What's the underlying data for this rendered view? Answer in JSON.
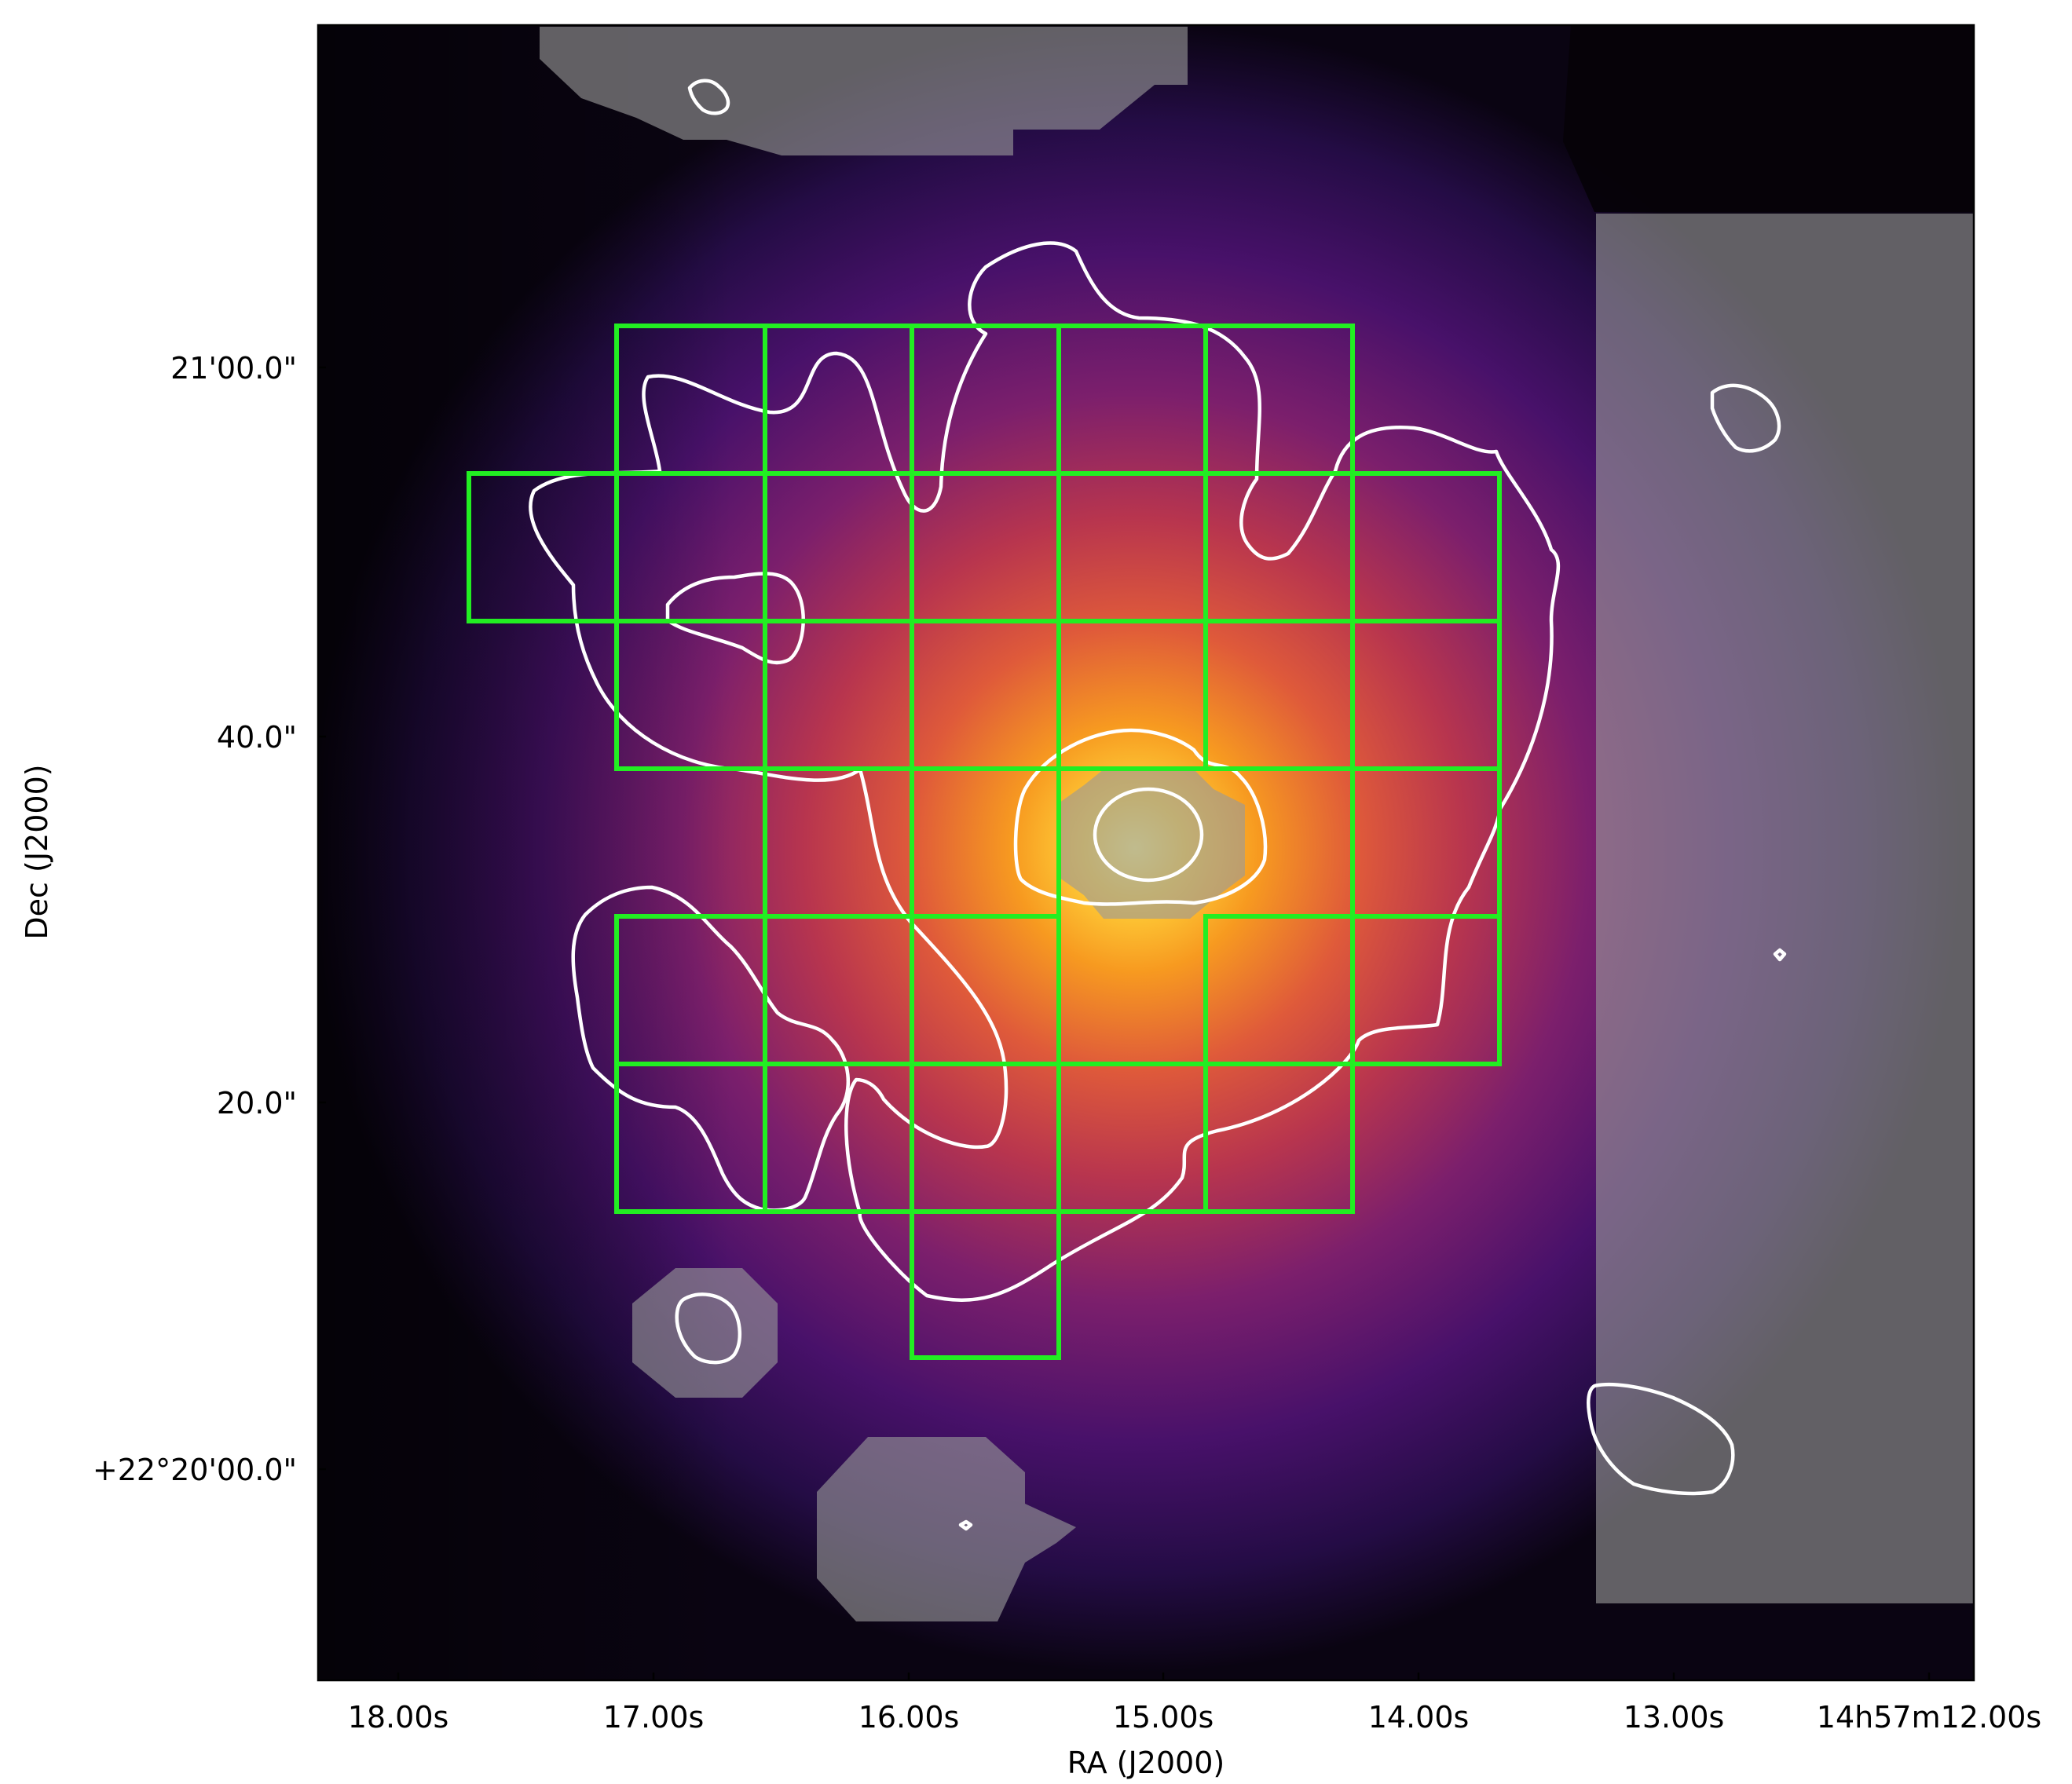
{
  "axes": {
    "xlabel": "RA (J2000)",
    "ylabel": "Dec (J2000)",
    "x_ticks": [
      "18.00s",
      "17.00s",
      "16.00s",
      "15.00s",
      "14.00s",
      "13.00s",
      "14h57m12.00s"
    ],
    "y_ticks": [
      "21'00.0\"",
      "40.0\"",
      "20.0\"",
      "+22°20'00.0\""
    ]
  },
  "colors": {
    "grid_boxes": "#22ee22",
    "contours": "#ffffff",
    "masks": "#9a9a9a",
    "colormap": "inferno-like (black-purple-red-orange-yellow)"
  }
}
